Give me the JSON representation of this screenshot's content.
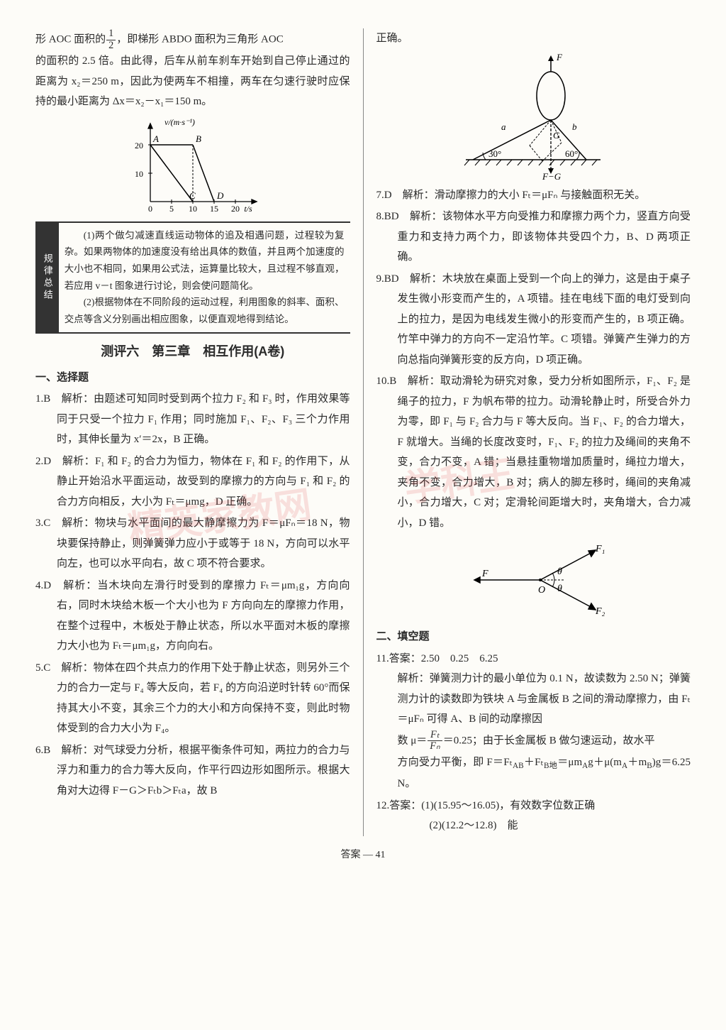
{
  "watermark": {
    "text1": "精英家教网",
    "text2": "学科王"
  },
  "left": {
    "intro_p1": "形 AOC 面积的",
    "intro_p1b": "，即梯形 ABDO 面积为三角形 AOC",
    "intro_p2": "的面积的 2.5 倍。由此得，后车从前车刹车开始到自己停止通过的距离为 x₂＝250 m，因此为使两车不相撞，两车在匀速行驶时应保持的最小距离为 Δx＝x₂－x₁＝150 m。",
    "chart": {
      "type": "line",
      "xlabel": "t/s",
      "ylabel": "v/(m·s⁻¹)",
      "xlim": [
        0,
        22
      ],
      "ylim": [
        0,
        24
      ],
      "xticks": [
        0,
        5,
        10,
        15,
        20
      ],
      "yticks": [
        10,
        20
      ],
      "points_label": [
        "A",
        "B",
        "C",
        "D"
      ],
      "line1": {
        "pts": [
          [
            0,
            20
          ],
          [
            10,
            0
          ]
        ],
        "label_at": [
          0,
          20
        ],
        "label": "A",
        "c_at": [
          10,
          0
        ],
        "c_label": "C"
      },
      "line2": {
        "pts": [
          [
            0,
            20
          ],
          [
            10,
            20
          ],
          [
            15,
            0
          ]
        ],
        "b_at": [
          10,
          20
        ],
        "b_label": "B",
        "d_at": [
          15,
          0
        ],
        "d_label": "D"
      },
      "axis_color": "#000",
      "line_color": "#000",
      "bg": "#fdfcf8"
    },
    "tip_label": "规律总结",
    "tip_p1": "(1)两个做匀减速直线运动物体的追及相遇问题，过程较为复杂。如果两物体的加速度没有给出具体的数值，并且两个加速度的大小也不相同，如果用公式法，运算量比较大，且过程不够直观，若应用 v－t 图象进行讨论，则会使问题简化。",
    "tip_p2": "(2)根据物体在不同阶段的运动过程，利用图象的斜率、面积、交点等含义分别画出相应图象，以便直观地得到结论。",
    "section_title": "测评六　第三章　相互作用(A卷)",
    "sub1": "一、选择题",
    "q1": "1.B　解析：由题述可知同时受到两个拉力 F₂ 和 F₃ 时，作用效果等同于只受一个拉力 F₁ 作用；同时施加 F₁、F₂、F₃ 三个力作用时，其伸长量为 x′＝2x，B 正确。",
    "q2": "2.D　解析：F₁ 和 F₂ 的合力为恒力，物体在 F₁ 和 F₂ 的作用下，从静止开始沿水平面运动，故受到的摩擦力的方向与 F₁ 和 F₂ 的合力方向相反，大小为 Fₜ＝μmg，D 正确。",
    "q3": "3.C　解析：物块与水平面间的最大静摩擦力为 F＝μFₙ＝18 N，物块要保持静止，则弹簧弹力应小于或等于 18 N，方向可以水平向左，也可以水平向右，故 C 项不符合要求。",
    "q4": "4.D　解析：当木块向左滑行时受到的摩擦力 Fₜ＝μm₁g，方向向右，同时木块给木板一个大小也为 F 方向向左的摩擦力作用，在整个过程中，木板处于静止状态，所以水平面对木板的摩擦力大小也为 Fₜ＝μm₁g，方向向右。",
    "q5": "5.C　解析：物体在四个共点力的作用下处于静止状态，则另外三个力的合力一定与 F₄ 等大反向，若 F₄ 的方向沿逆时针转 60°而保持其大小不变，其余三个力的大小和方向保持不变，则此时物体受到的合力大小为 F₄。",
    "q6": "6.B　解析：对气球受力分析，根据平衡条件可知，两拉力的合力与浮力和重力的合力等大反向，作平行四边形如图所示。根据大角对大边得 F－G＞Fₜb＞Fₜa，故 B"
  },
  "right": {
    "p_top": "正确。",
    "fig1": {
      "type": "diagram",
      "F_label": "F",
      "G_label": "G",
      "FG_label": "F−G",
      "angle_a": "30°",
      "angle_b": "60°",
      "line_a": "a",
      "line_b": "b",
      "color": "#000",
      "bg": "#fdfcf8",
      "ground_hatch": "#000"
    },
    "q7": "7.D　解析：滑动摩擦力的大小 Fₜ＝μFₙ 与接触面积无关。",
    "q8": "8.BD　解析：该物体水平方向受推力和摩擦力两个力，竖直方向受重力和支持力两个力，即该物体共受四个力，B、D 两项正确。",
    "q9": "9.BD　解析：木块放在桌面上受到一个向上的弹力，这是由于桌子发生微小形变而产生的，A 项错。挂在电线下面的电灯受到向上的拉力，是因为电线发生微小的形变而产生的，B 项正确。竹竿中弹力的方向不一定沿竹竿。C 项错。弹簧产生弹力的方向总指向弹簧形变的反方向，D 项正确。",
    "q10": "10.B　解析：取动滑轮为研究对象，受力分析如图所示，F₁、F₂ 是绳子的拉力，F 为帆布带的拉力。动滑轮静止时，所受合外力为零，即 F₁ 与 F₂ 合力与 F 等大反向。当 F₁、F₂ 的合力增大，F 就增大。当绳的长度改变时，F₁、F₂ 的拉力及绳间的夹角不变，合力不变，A 错；当悬挂重物增加质量时，绳拉力增大，夹角不变，合力增大，B 对；病人的脚左移时，绳间的夹角减小，合力增大，C 对；定滑轮间距增大时，夹角增大，合力减小，D 错。",
    "fig2": {
      "type": "diagram",
      "labels": {
        "F": "F",
        "F1": "F₁",
        "F2": "F₂",
        "O": "O",
        "theta": "θ"
      },
      "color": "#000"
    },
    "sub2": "二、填空题",
    "q11_ans": "11.答案：2.50　0.25　6.25",
    "q11_expl": "解析：弹簧测力计的最小单位为 0.1 N，故读数为 2.50 N；弹簧测力计的读数即为铁块 A 与金属板 B 之间的滑动摩擦力，由 Fₜ＝μFₙ 可得 A、B 间的动摩擦因",
    "q11_expl2a": "数 μ＝",
    "q11_expl2b": "＝0.25；由于长金属板 B 做匀速运动，故水平",
    "q11_expl3": "方向受力平衡，即 F＝Fₜ<sub>AB</sub>＋Fₜ<sub>B地</sub>＝μm<sub>A</sub>g＋μ(m<sub>A</sub>＋m<sub>B</sub>)g＝6.25 N。",
    "q12_a": "12.答案：(1)(15.95～16.05)，有效数字位数正确",
    "q12_b": "(2)(12.2～12.8)　能",
    "frac": {
      "num": "Fₜ",
      "den": "Fₙ"
    }
  },
  "footer": "答案 — 41"
}
